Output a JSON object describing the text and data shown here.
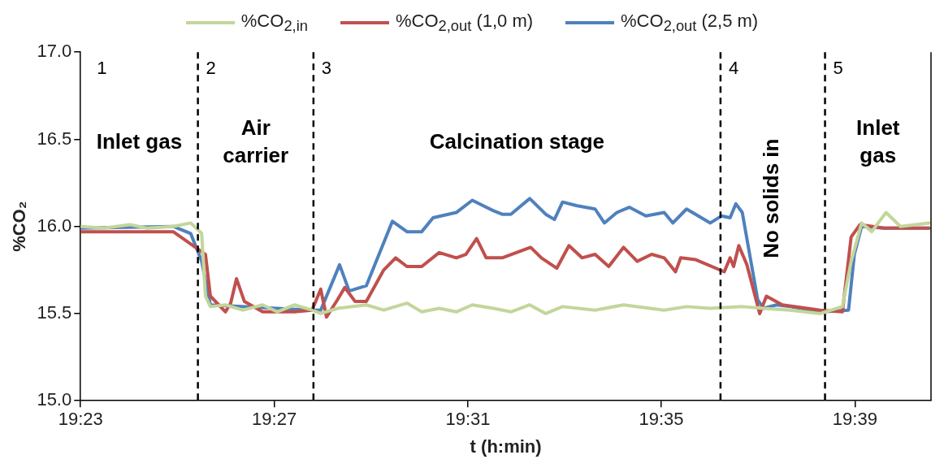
{
  "chart_data": {
    "type": "line",
    "xlabel": "t (h:min)",
    "ylabel": "%CO₂",
    "xlim": [
      19.3833,
      19.6762
    ],
    "ylim": [
      15,
      17
    ],
    "xticks": [
      {
        "value": 19.3833,
        "label": "19:23"
      },
      {
        "value": 19.45,
        "label": "19:27"
      },
      {
        "value": 19.5167,
        "label": "19:31"
      },
      {
        "value": 19.5833,
        "label": "19:35"
      },
      {
        "value": 19.65,
        "label": "19:39"
      }
    ],
    "yticks": [
      {
        "value": 15,
        "label": "15.0"
      },
      {
        "value": 15.5,
        "label": "15.5"
      },
      {
        "value": 16,
        "label": "16.0"
      },
      {
        "value": 16.5,
        "label": "16.5"
      },
      {
        "value": 17,
        "label": "17.0"
      }
    ],
    "grid": false,
    "legend": "top",
    "marker": "none",
    "line_style": "solid",
    "series": [
      {
        "name": "%CO$_{2,in}$",
        "color": "#c3d69b",
        "x": [
          19.3833,
          19.3913,
          19.4003,
          19.4063,
          19.4152,
          19.4212,
          19.425,
          19.4263,
          19.428,
          19.4332,
          19.4392,
          19.446,
          19.451,
          19.457,
          19.463,
          19.466,
          19.4718,
          19.4817,
          19.4877,
          19.4957,
          19.5008,
          19.5068,
          19.5127,
          19.5182,
          19.5255,
          19.5315,
          19.538,
          19.5435,
          19.5493,
          19.5605,
          19.5703,
          19.5843,
          19.592,
          19.6002,
          19.6112,
          19.6185,
          19.6278,
          19.638,
          19.6457,
          19.6487,
          19.6523,
          19.6558,
          19.6607,
          19.6657,
          19.6755
        ],
        "values": [
          16.0,
          15.99,
          16.01,
          15.99,
          16.0,
          16.02,
          15.96,
          15.6,
          15.54,
          15.55,
          15.52,
          15.55,
          15.51,
          15.55,
          15.52,
          15.5,
          15.53,
          15.55,
          15.52,
          15.56,
          15.51,
          15.53,
          15.51,
          15.55,
          15.53,
          15.51,
          15.55,
          15.5,
          15.54,
          15.52,
          15.55,
          15.52,
          15.54,
          15.53,
          15.54,
          15.53,
          15.52,
          15.5,
          15.54,
          15.8,
          16.02,
          15.97,
          16.08,
          16.0,
          16.02
        ]
      },
      {
        "name": "%CO$_{2,out}$ (1,0 m)",
        "color": "#c0504d",
        "x": [
          19.3833,
          19.4152,
          19.4263,
          19.428,
          19.4332,
          19.435,
          19.437,
          19.4397,
          19.446,
          19.457,
          19.463,
          19.466,
          19.468,
          19.4718,
          19.4743,
          19.4778,
          19.4817,
          19.4877,
          19.4918,
          19.4957,
          19.5008,
          19.5068,
          19.5127,
          19.516,
          19.5197,
          19.523,
          19.5277,
          19.5285,
          19.5383,
          19.542,
          19.5473,
          19.5515,
          19.556,
          19.5605,
          19.5652,
          19.5703,
          19.575,
          19.58,
          19.5843,
          19.5882,
          19.59,
          19.595,
          19.605,
          19.607,
          19.6082,
          19.61,
          19.6128,
          19.6172,
          19.6195,
          19.625,
          19.638,
          19.6457,
          19.6487,
          19.6517,
          19.66,
          19.6755
        ],
        "values": [
          15.97,
          15.97,
          15.84,
          15.6,
          15.51,
          15.56,
          15.7,
          15.57,
          15.51,
          15.51,
          15.52,
          15.64,
          15.48,
          15.58,
          15.65,
          15.57,
          15.57,
          15.75,
          15.82,
          15.77,
          15.77,
          15.85,
          15.82,
          15.84,
          15.93,
          15.82,
          15.82,
          15.82,
          15.88,
          15.82,
          15.76,
          15.89,
          15.82,
          15.84,
          15.77,
          15.88,
          15.8,
          15.84,
          15.82,
          15.74,
          15.82,
          15.81,
          15.74,
          15.82,
          15.77,
          15.89,
          15.78,
          15.5,
          15.6,
          15.55,
          15.52,
          15.51,
          15.94,
          16.01,
          15.99,
          15.99
        ]
      },
      {
        "name": "%CO$_{2,out}$ (2,5 m)",
        "color": "#4f81bd",
        "x": [
          19.3833,
          19.4152,
          19.4212,
          19.425,
          19.428,
          19.463,
          19.466,
          19.4725,
          19.4758,
          19.4817,
          19.4907,
          19.4957,
          19.5008,
          19.5047,
          19.5127,
          19.5182,
          19.5255,
          19.5285,
          19.5315,
          19.538,
          19.5435,
          19.5465,
          19.5493,
          19.554,
          19.5605,
          19.5637,
          19.568,
          19.5723,
          19.578,
          19.5843,
          19.5873,
          19.592,
          19.6002,
          19.604,
          19.607,
          19.609,
          19.6112,
          19.6165,
          19.6185,
          19.623,
          19.6278,
          19.638,
          19.6478,
          19.6498,
          19.6523,
          19.66,
          19.6755
        ],
        "values": [
          15.99,
          16.0,
          15.96,
          15.8,
          15.55,
          15.52,
          15.52,
          15.78,
          15.63,
          15.66,
          16.03,
          15.97,
          15.97,
          16.05,
          16.08,
          16.15,
          16.09,
          16.07,
          16.07,
          16.16,
          16.07,
          16.04,
          16.14,
          16.12,
          16.1,
          16.02,
          16.08,
          16.11,
          16.06,
          16.08,
          16.02,
          16.1,
          16.02,
          16.06,
          16.05,
          16.13,
          16.08,
          15.58,
          15.53,
          15.55,
          15.54,
          15.51,
          15.52,
          15.84,
          16.0,
          15.99,
          15.99
        ]
      }
    ],
    "ref_lines": [
      {
        "axis": "x",
        "value": 19.4237,
        "line_style": "dashed"
      },
      {
        "axis": "x",
        "value": 19.4635,
        "line_style": "dashed"
      },
      {
        "axis": "x",
        "value": 19.6037,
        "line_style": "dashed"
      },
      {
        "axis": "x",
        "value": 19.6397,
        "line_style": "dashed"
      }
    ],
    "annotations": [
      "1",
      "Inlet gas",
      "2",
      "Air carrier",
      "3",
      "Calcination stage",
      "4",
      "No solids in",
      "5",
      "Inlet gas"
    ]
  }
}
